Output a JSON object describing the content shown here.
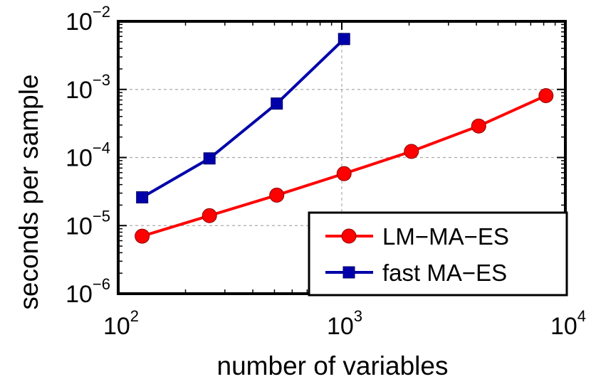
{
  "chart_data": {
    "type": "line",
    "xscale": "log",
    "yscale": "log",
    "xlim": [
      100,
      10000
    ],
    "ylim": [
      1e-06,
      0.01
    ],
    "xlabel": "number of variables",
    "ylabel": "seconds per sample",
    "grid": true,
    "legend_position": "bottom-right",
    "x_ticks": [
      {
        "value": 100,
        "base": "10",
        "exp": "2"
      },
      {
        "value": 1000,
        "base": "10",
        "exp": "3"
      },
      {
        "value": 10000,
        "base": "10",
        "exp": "4"
      }
    ],
    "y_ticks": [
      {
        "value": 1e-06,
        "base": "10",
        "exp": "−6"
      },
      {
        "value": 1e-05,
        "base": "10",
        "exp": "−5"
      },
      {
        "value": 0.0001,
        "base": "10",
        "exp": "−4"
      },
      {
        "value": 0.001,
        "base": "10",
        "exp": "−3"
      },
      {
        "value": 0.01,
        "base": "10",
        "exp": "−2"
      }
    ],
    "series": [
      {
        "name": "LM−MA−ES",
        "color": "#ff0000",
        "marker": "circle",
        "x": [
          128,
          256,
          512,
          1024,
          2048,
          4096,
          8192
        ],
        "y": [
          7e-06,
          1.4e-05,
          2.8e-05,
          5.8e-05,
          0.000123,
          0.00029,
          0.00081
        ]
      },
      {
        "name": "fast MA−ES",
        "color": "#0000aa",
        "marker": "square",
        "x": [
          128,
          256,
          512,
          1024
        ],
        "y": [
          2.6e-05,
          9.7e-05,
          0.00062,
          0.0055
        ]
      }
    ]
  }
}
